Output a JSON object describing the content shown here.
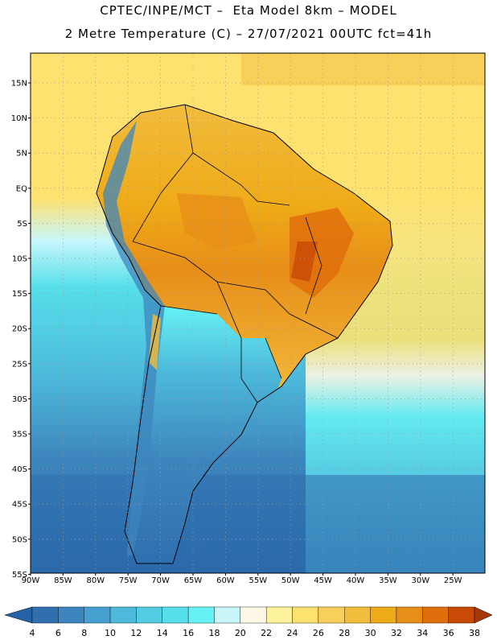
{
  "header": {
    "line1": "CPTEC/INPE/MCT –  Eta Model 8km – MODEL",
    "line2": "2 Metre Temperature (C) – 27/07/2021 00UTC fct=41h"
  },
  "map": {
    "lat_labels": [
      "15N",
      "10N",
      "5N",
      "EQ",
      "5S",
      "10S",
      "15S",
      "20S",
      "25S",
      "30S",
      "35S",
      "40S",
      "45S",
      "50S",
      "55S"
    ],
    "lon_labels": [
      "90W",
      "85W",
      "80W",
      "75W",
      "70W",
      "65W",
      "60W",
      "55W",
      "50W",
      "45W",
      "40W",
      "35W",
      "30W",
      "25W"
    ],
    "grid": "dotted"
  },
  "colorbar": {
    "ticks": [
      "4",
      "6",
      "8",
      "10",
      "12",
      "14",
      "16",
      "18",
      "20",
      "22",
      "24",
      "26",
      "28",
      "30",
      "32",
      "34",
      "36",
      "38"
    ],
    "colors": [
      "#2f6fae",
      "#3d86bd",
      "#46a0cf",
      "#4dbadb",
      "#52cde3",
      "#56dfea",
      "#66f2f5",
      "#c8f6fb",
      "#fdf7e6",
      "#fef39d",
      "#fde270",
      "#f8cf58",
      "#f2bc3c",
      "#efaa17",
      "#e78e18",
      "#df6e0c",
      "#c84a06",
      "#b83e00"
    ],
    "below_color": "#2563a6",
    "above_color": "#a63803"
  }
}
